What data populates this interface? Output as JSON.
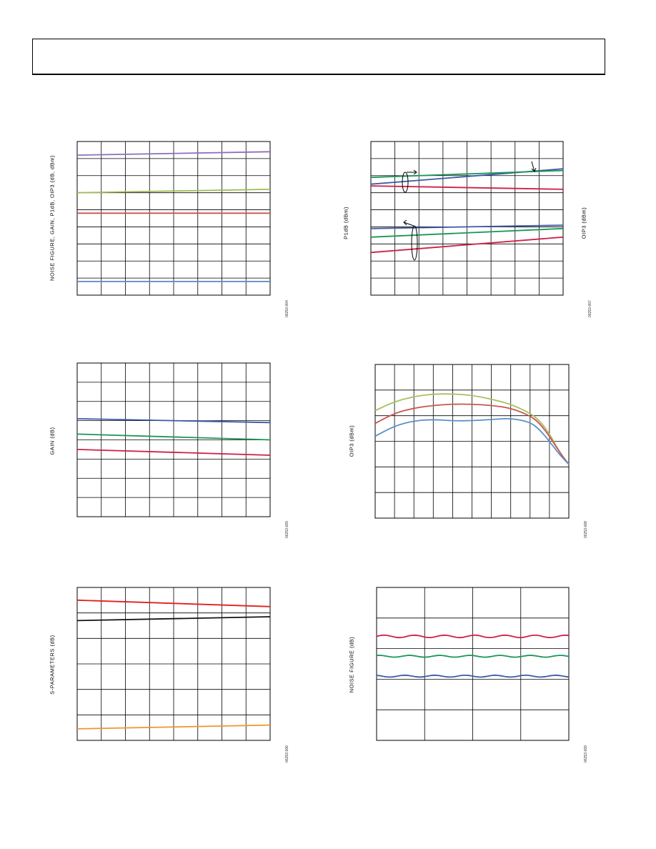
{
  "colors": {
    "purple": "#8b6fbd",
    "olive": "#9fbb55",
    "brick": "#c8534f",
    "steel": "#5b87c5",
    "navy": "#3d5aa5",
    "green": "#1a9656",
    "crimson": "#cf1f4a",
    "red": "#e0201c",
    "black": "#141414",
    "orange": "#f0962c",
    "gold": "#a8c060",
    "rust": "#c85550",
    "sky": "#5a90c8"
  },
  "chart_data": [
    {
      "type": "line",
      "ylabel": "NOISE FIGURE, GAIN, P1dB, OIP3 (dB, dBm)",
      "figure_id": "06253-004",
      "x": [
        0,
        1
      ],
      "xlim": [
        0,
        1
      ],
      "ylim": [
        0,
        9
      ],
      "grid": {
        "cols": 8,
        "rows": 9
      },
      "series": [
        {
          "color": "purple",
          "values": [
            8.2,
            8.4
          ]
        },
        {
          "color": "olive",
          "values": [
            6.0,
            6.2
          ]
        },
        {
          "color": "brick",
          "values": [
            4.8,
            4.8
          ]
        },
        {
          "color": "steel",
          "values": [
            0.8,
            0.8
          ]
        }
      ]
    },
    {
      "type": "line",
      "ylabel": "P1dB (dBm)",
      "y2label": "OIP3 (dBm)",
      "figure_id": "06253-007",
      "x": [
        0,
        1
      ],
      "xlim": [
        0,
        1
      ],
      "ylim": [
        0,
        9
      ],
      "grid": {
        "cols": 8,
        "rows": 9
      },
      "series": [
        {
          "color": "navy",
          "values": [
            6.5,
            7.4
          ]
        },
        {
          "color": "green",
          "values": [
            6.9,
            7.3
          ]
        },
        {
          "color": "crimson",
          "values": [
            6.4,
            6.2
          ]
        },
        {
          "color": "navy",
          "values": [
            3.9,
            4.1
          ]
        },
        {
          "color": "green",
          "values": [
            3.4,
            3.9
          ]
        },
        {
          "color": "crimson",
          "values": [
            2.5,
            3.4
          ]
        }
      ]
    },
    {
      "type": "line",
      "ylabel": "GAIN (dB)",
      "figure_id": "06253-005",
      "x": [
        0,
        1
      ],
      "xlim": [
        0,
        1
      ],
      "ylim": [
        0,
        8
      ],
      "grid": {
        "cols": 8,
        "rows": 8
      },
      "series": [
        {
          "color": "navy",
          "values": [
            5.1,
            4.9
          ]
        },
        {
          "color": "green",
          "values": [
            4.3,
            4.0
          ]
        },
        {
          "color": "crimson",
          "values": [
            3.5,
            3.2
          ]
        }
      ]
    },
    {
      "type": "line",
      "ylabel": "OIP3 (dBm)",
      "figure_id": "06253-008",
      "x": [
        0,
        0.1,
        0.2,
        0.3,
        0.4,
        0.5,
        0.6,
        0.7,
        0.8,
        0.85,
        0.9,
        0.95,
        1.0
      ],
      "xlim": [
        0,
        1
      ],
      "ylim": [
        0,
        6
      ],
      "grid": {
        "cols": 10,
        "rows": 6
      },
      "series": [
        {
          "color": "gold",
          "values": [
            4.2,
            4.55,
            4.75,
            4.85,
            4.85,
            4.8,
            4.65,
            4.45,
            4.1,
            3.8,
            3.3,
            2.6,
            2.1
          ]
        },
        {
          "color": "rust",
          "values": [
            3.7,
            4.1,
            4.3,
            4.4,
            4.45,
            4.45,
            4.4,
            4.3,
            4.0,
            3.7,
            3.2,
            2.6,
            2.1
          ]
        },
        {
          "color": "sky",
          "values": [
            3.2,
            3.6,
            3.8,
            3.85,
            3.8,
            3.8,
            3.85,
            3.9,
            3.75,
            3.45,
            3.0,
            2.5,
            2.1
          ]
        }
      ]
    },
    {
      "type": "line",
      "ylabel": "S-PARAMETERS (dB)",
      "figure_id": "06253-006",
      "x": [
        0,
        1
      ],
      "xlim": [
        0,
        1
      ],
      "ylim": [
        0,
        6
      ],
      "grid": {
        "cols": 8,
        "rows": 6
      },
      "series": [
        {
          "color": "red",
          "values": [
            5.5,
            5.25
          ]
        },
        {
          "color": "black",
          "values": [
            4.7,
            4.85
          ]
        },
        {
          "color": "orange",
          "values": [
            0.45,
            0.6
          ]
        }
      ]
    },
    {
      "type": "line",
      "ylabel": "NOISE FIGURE (dB)",
      "figure_id": "06253-009",
      "x": [
        0,
        1
      ],
      "xlim": [
        0,
        1
      ],
      "ylim": [
        0,
        5
      ],
      "grid": {
        "cols": 4,
        "rows": 5
      },
      "series": [
        {
          "color": "crimson",
          "values": [
            3.4,
            3.4
          ],
          "wiggle": 0.04
        },
        {
          "color": "green",
          "values": [
            2.75,
            2.75
          ],
          "wiggle": 0.03
        },
        {
          "color": "navy",
          "values": [
            2.1,
            2.1
          ],
          "wiggle": 0.03
        }
      ]
    }
  ]
}
